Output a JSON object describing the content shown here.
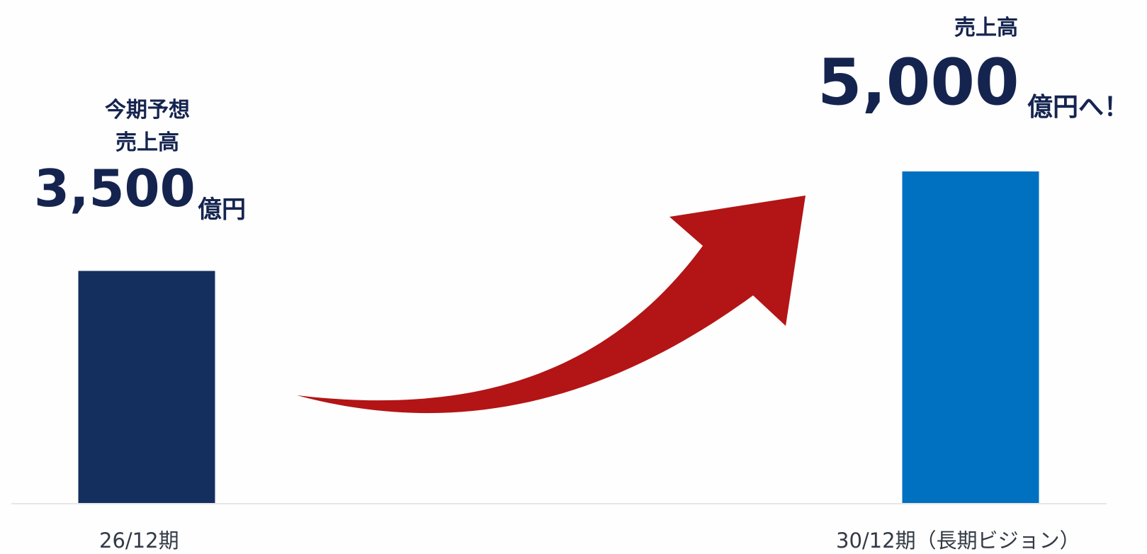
{
  "chart_data": {
    "type": "bar",
    "categories": [
      "26/12期",
      "30/12期（長期ビジョン）"
    ],
    "values": [
      3500,
      5000
    ],
    "unit": "億円",
    "ylim": [
      0,
      5500
    ],
    "grid": false,
    "legend": "none",
    "colors": [
      "#142f5e",
      "#0070c0"
    ],
    "arrow_color": "#b31415",
    "annotations": [
      {
        "label_lines": [
          "今期予想",
          "売上高"
        ],
        "value_text": "3,500",
        "unit_text": "億円"
      },
      {
        "label_lines": [
          "売上高"
        ],
        "value_text": "5,000",
        "unit_text": "億円へ！"
      }
    ]
  }
}
